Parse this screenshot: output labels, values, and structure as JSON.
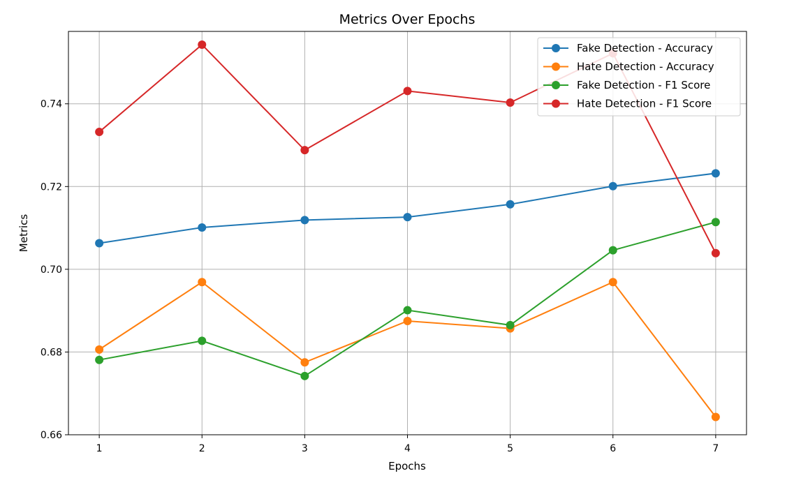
{
  "chart_data": {
    "type": "line",
    "title": "Metrics Over Epochs",
    "xlabel": "Epochs",
    "ylabel": "Metrics",
    "x": [
      1,
      2,
      3,
      4,
      5,
      6,
      7
    ],
    "x_ticks": [
      "1",
      "2",
      "3",
      "4",
      "5",
      "6",
      "7"
    ],
    "y_ticks": [
      "0.66",
      "0.68",
      "0.70",
      "0.72",
      "0.74"
    ],
    "y_tick_values": [
      0.66,
      0.68,
      0.7,
      0.72,
      0.74
    ],
    "xlim": [
      0.7,
      7.3
    ],
    "ylim": [
      0.66,
      0.7575
    ],
    "grid": true,
    "legend_position": "top-right",
    "marker": "circle",
    "series": [
      {
        "name": "Fake Detection - Accuracy",
        "color": "#1f77b4",
        "values": [
          0.7063,
          0.7101,
          0.7119,
          0.7126,
          0.7157,
          0.7201,
          0.7232
        ]
      },
      {
        "name": "Hate Detection - Accuracy",
        "color": "#ff7f0e",
        "values": [
          0.6806,
          0.6969,
          0.6775,
          0.6875,
          0.6857,
          0.6969,
          0.6643
        ]
      },
      {
        "name": "Fake Detection - F1 Score",
        "color": "#2ca02c",
        "values": [
          0.6781,
          0.6827,
          0.6742,
          0.6901,
          0.6865,
          0.7046,
          0.7114
        ]
      },
      {
        "name": "Hate Detection - F1 Score",
        "color": "#d62728",
        "values": [
          0.7332,
          0.7543,
          0.7288,
          0.7431,
          0.7403,
          0.7522,
          0.7039
        ]
      }
    ]
  }
}
